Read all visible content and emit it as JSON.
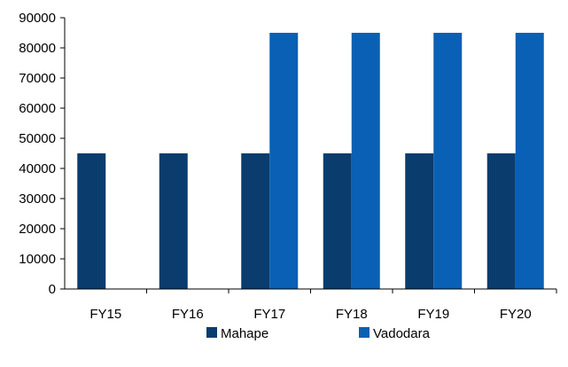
{
  "chart_data": {
    "type": "bar",
    "categories": [
      "FY15",
      "FY16",
      "FY17",
      "FY18",
      "FY19",
      "FY20"
    ],
    "series": [
      {
        "name": "Mahape",
        "color": "#0a3c6e",
        "values": [
          45000,
          45000,
          45000,
          45000,
          45000,
          45000
        ]
      },
      {
        "name": "Vadodara",
        "color": "#0a60b4",
        "values": [
          0,
          0,
          85000,
          85000,
          85000,
          85000
        ]
      }
    ],
    "ylim": [
      0,
      90000
    ],
    "yticks": [
      "0",
      "10000",
      "20000",
      "30000",
      "40000",
      "50000",
      "60000",
      "70000",
      "80000",
      "90000"
    ],
    "grid": false,
    "legend_position": "bottom"
  }
}
